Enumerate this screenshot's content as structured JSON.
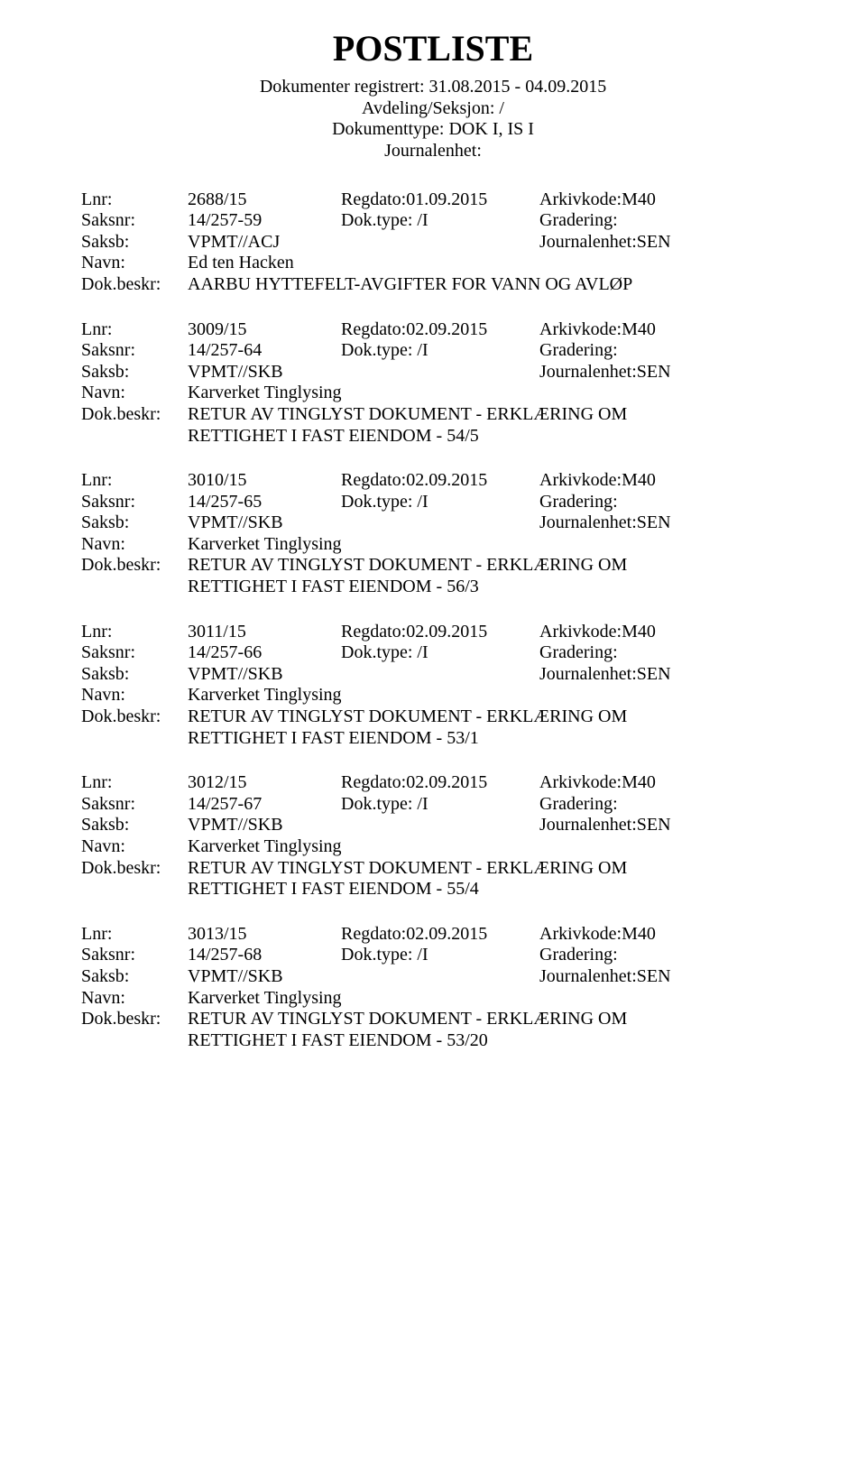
{
  "title": "POSTLISTE",
  "header": {
    "line1": "Dokumenter registrert: 31.08.2015 - 04.09.2015",
    "line2": "Avdeling/Seksjon: /",
    "line3": "Dokumenttype: DOK I, IS I",
    "line4": "Journalenhet:"
  },
  "labels": {
    "lnr": "Lnr:",
    "saksnr": "Saksnr:",
    "saksb": "Saksb:",
    "navn": "Navn:",
    "beskr": "Dok.beskr:"
  },
  "entries": [
    {
      "lnr": "2688/15",
      "regdato": "Regdato:01.09.2015",
      "arkivkode": "Arkivkode:M40",
      "saksnr": "14/257-59",
      "doktype": "Dok.type: /I",
      "gradering": "Gradering:",
      "saksb": "VPMT//ACJ",
      "journalenhet": "Journalenhet:SEN",
      "navn": "Ed ten Hacken",
      "beskr": "AARBU HYTTEFELT-AVGIFTER FOR VANN OG AVLØP",
      "beskr2": ""
    },
    {
      "lnr": "3009/15",
      "regdato": "Regdato:02.09.2015",
      "arkivkode": "Arkivkode:M40",
      "saksnr": "14/257-64",
      "doktype": "Dok.type: /I",
      "gradering": "Gradering:",
      "saksb": "VPMT//SKB",
      "journalenhet": "Journalenhet:SEN",
      "navn": "Karverket Tinglysing",
      "beskr": "RETUR AV TINGLYST DOKUMENT - ERKLÆRING OM",
      "beskr2": "RETTIGHET I FAST EIENDOM - 54/5"
    },
    {
      "lnr": "3010/15",
      "regdato": "Regdato:02.09.2015",
      "arkivkode": "Arkivkode:M40",
      "saksnr": "14/257-65",
      "doktype": "Dok.type: /I",
      "gradering": "Gradering:",
      "saksb": "VPMT//SKB",
      "journalenhet": "Journalenhet:SEN",
      "navn": "Karverket Tinglysing",
      "beskr": "RETUR AV TINGLYST DOKUMENT - ERKLÆRING OM",
      "beskr2": "RETTIGHET I FAST EIENDOM - 56/3"
    },
    {
      "lnr": "3011/15",
      "regdato": "Regdato:02.09.2015",
      "arkivkode": "Arkivkode:M40",
      "saksnr": "14/257-66",
      "doktype": "Dok.type: /I",
      "gradering": "Gradering:",
      "saksb": "VPMT//SKB",
      "journalenhet": "Journalenhet:SEN",
      "navn": "Karverket Tinglysing",
      "beskr": "RETUR AV TINGLYST DOKUMENT - ERKLÆRING OM",
      "beskr2": "RETTIGHET I FAST EIENDOM - 53/1"
    },
    {
      "lnr": "3012/15",
      "regdato": "Regdato:02.09.2015",
      "arkivkode": "Arkivkode:M40",
      "saksnr": "14/257-67",
      "doktype": "Dok.type: /I",
      "gradering": "Gradering:",
      "saksb": "VPMT//SKB",
      "journalenhet": "Journalenhet:SEN",
      "navn": "Karverket Tinglysing",
      "beskr": "RETUR AV TINGLYST DOKUMENT - ERKLÆRING OM",
      "beskr2": "RETTIGHET I FAST EIENDOM - 55/4"
    },
    {
      "lnr": "3013/15",
      "regdato": "Regdato:02.09.2015",
      "arkivkode": "Arkivkode:M40",
      "saksnr": "14/257-68",
      "doktype": "Dok.type: /I",
      "gradering": "Gradering:",
      "saksb": "VPMT//SKB",
      "journalenhet": "Journalenhet:SEN",
      "navn": "Karverket Tinglysing",
      "beskr": "RETUR AV TINGLYST DOKUMENT - ERKLÆRING OM",
      "beskr2": "RETTIGHET I FAST EIENDOM - 53/20"
    }
  ]
}
